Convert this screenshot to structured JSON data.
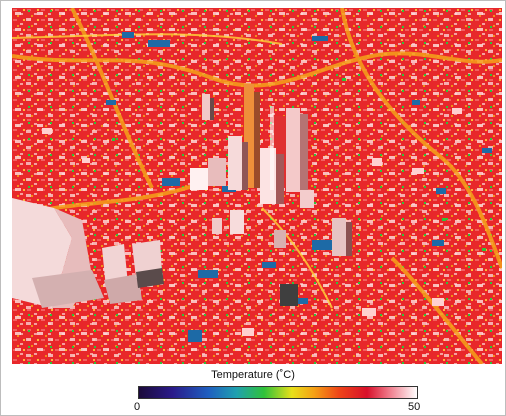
{
  "legend": {
    "title": "Temperature (˚C)",
    "min_label": "0",
    "max_label": "50"
  },
  "colors": {
    "hot": "#e8202a",
    "warm": "#f5a015",
    "cool": "#1f5fc0",
    "peak": "#ffffff"
  }
}
